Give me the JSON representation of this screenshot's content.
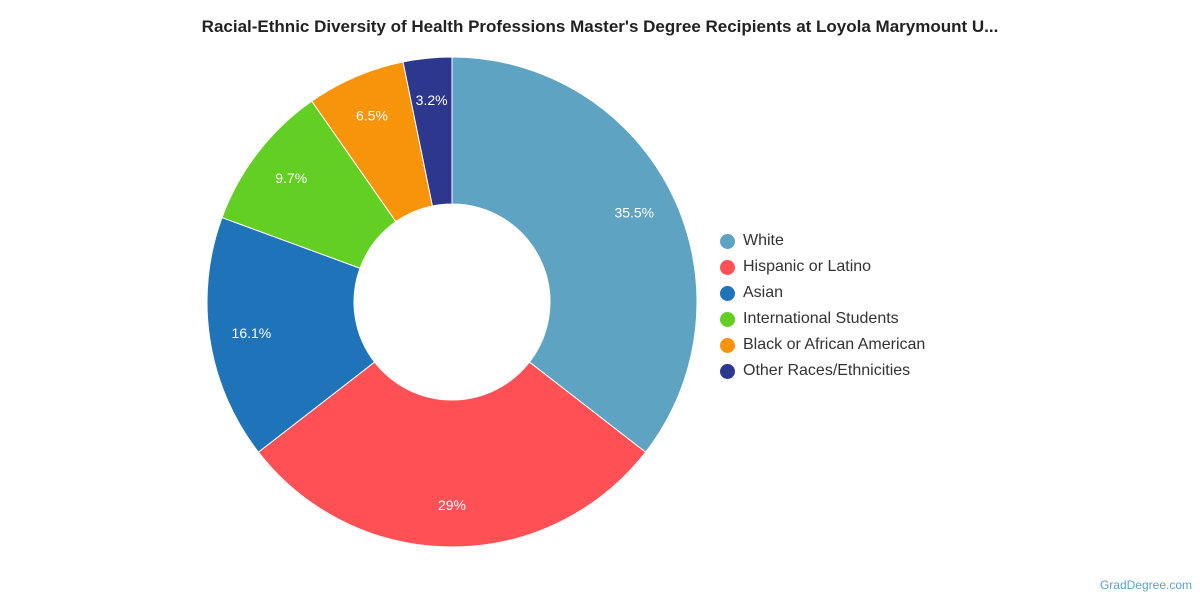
{
  "chart_data": {
    "type": "pie",
    "title": "Racial-Ethnic Diversity of Health Professions Master's Degree Recipients at Loyola Marymount U...",
    "donut": true,
    "legend_position": "right",
    "categories": [
      "White",
      "Hispanic or Latino",
      "Asian",
      "International Students",
      "Black or African American",
      "Other Races/Ethnicities"
    ],
    "values": [
      35.5,
      29,
      16.1,
      9.7,
      6.5,
      3.2
    ],
    "value_labels": [
      "35.5%",
      "29%",
      "16.1%",
      "9.7%",
      "6.5%",
      "3.2%"
    ],
    "colors": [
      "#5ea3c1",
      "#ff5155",
      "#1f73b9",
      "#63cf22",
      "#f7940a",
      "#2c378d"
    ]
  },
  "credit": "GradDegree.com"
}
